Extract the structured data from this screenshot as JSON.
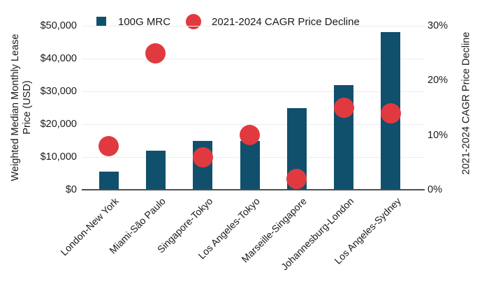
{
  "chart_data": {
    "type": "combo-bar-scatter",
    "title": "",
    "categories": [
      "London-New York",
      "Miami-São Paulo",
      "Singapore-Tokyo",
      "Los Angeles-Tokyo",
      "Marseille-Singapore",
      "Johannesburg-London",
      "Los Angeles-Sydney"
    ],
    "series": [
      {
        "name": "100G MRC",
        "type": "bar",
        "axis": "left",
        "color": "#11506D",
        "values": [
          5500,
          12000,
          15000,
          15000,
          25000,
          32000,
          48000
        ]
      },
      {
        "name": "2021-2024 CAGR Price Decline",
        "type": "scatter",
        "axis": "right",
        "color": "#E03A40",
        "values": [
          8,
          25,
          6,
          10,
          2,
          15,
          14
        ]
      }
    ],
    "left_axis": {
      "title": "Weighted Median Monthly Lease Price (USD)",
      "title_lines": [
        "Weighted Median Monthly Lease",
        "Price (USD)"
      ],
      "min": 0,
      "max": 50000,
      "ticks": [
        {
          "value": 0,
          "label": "$0"
        },
        {
          "value": 10000,
          "label": "$10,000"
        },
        {
          "value": 20000,
          "label": "$20,000"
        },
        {
          "value": 30000,
          "label": "$30,000"
        },
        {
          "value": 40000,
          "label": "$40,000"
        },
        {
          "value": 50000,
          "label": "$50,000"
        }
      ]
    },
    "right_axis": {
      "title": "2021-2024 CAGR Price Decline",
      "min": 0,
      "max": 30,
      "ticks": [
        {
          "value": 0,
          "label": "0%"
        },
        {
          "value": 10,
          "label": "10%"
        },
        {
          "value": 20,
          "label": "20%"
        },
        {
          "value": 30,
          "label": "30%"
        }
      ]
    },
    "legend": [
      {
        "label": "100G MRC",
        "marker": "square",
        "color": "#11506D"
      },
      {
        "label": "2021-2024 CAGR Price Decline",
        "marker": "circle",
        "color": "#E03A40"
      }
    ],
    "grid": true,
    "legend_position": "top",
    "colors": {
      "background": "#FFFFFF",
      "bar": "#11506D",
      "dot": "#E03A40",
      "gridline": "#ECECEC",
      "axis_line": "#4D4D4D",
      "text": "#1A1A1A"
    }
  }
}
